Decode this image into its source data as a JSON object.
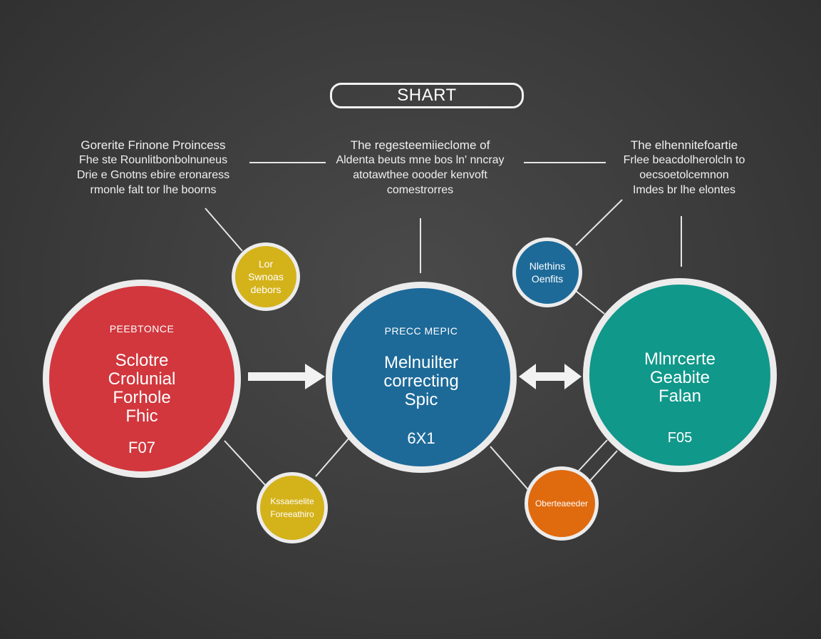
{
  "title": "SHART",
  "colors": {
    "red": "#d1373d",
    "blue": "#1d6a99",
    "teal": "#10988a",
    "yellow": "#d4b21a",
    "orange": "#e06a0e",
    "outline": "#ececec",
    "background": "#3b3b3b"
  },
  "captions": [
    {
      "lines": [
        "Gorerite Frinone Proincess",
        "Fhe ste Rounlitbonbolnuneus",
        "Drie e Gnotns ebire eronaress",
        "rmonle falt tor lhe boorns"
      ]
    },
    {
      "lines": [
        "The regesteemiieclome of",
        "Aldenta beuts mne bos ln' nncray",
        "atotawthee oooder kenvoft",
        "comestrorres"
      ]
    },
    {
      "lines": [
        "The elhennitefoartie",
        "Frlee beacdolherolcln to",
        "oecsoetolcemnon",
        "Imdes br lhe elontes"
      ]
    }
  ],
  "nodes": [
    {
      "top": "PEEBTONCE",
      "main": [
        "Sclotre",
        "Crolunial",
        "Forhole",
        "Fhic"
      ],
      "code": "F07"
    },
    {
      "top": "PRECC MEPIC",
      "main": [
        "Melnuilter",
        "correcting",
        "Spic"
      ],
      "code": "6X1"
    },
    {
      "top": "",
      "main": [
        "Mlnrcerte",
        "Geabite",
        "Falan"
      ],
      "code": "F05"
    }
  ],
  "sub_nodes": [
    {
      "lines": [
        "Lor",
        "Swnoas",
        "debors"
      ]
    },
    {
      "lines": [
        "Nlethins",
        "Oenfits"
      ]
    },
    {
      "lines": [
        "Kssaeselite",
        "Foreeathiro"
      ]
    },
    {
      "lines": [
        "Oberteaeeder"
      ]
    }
  ]
}
